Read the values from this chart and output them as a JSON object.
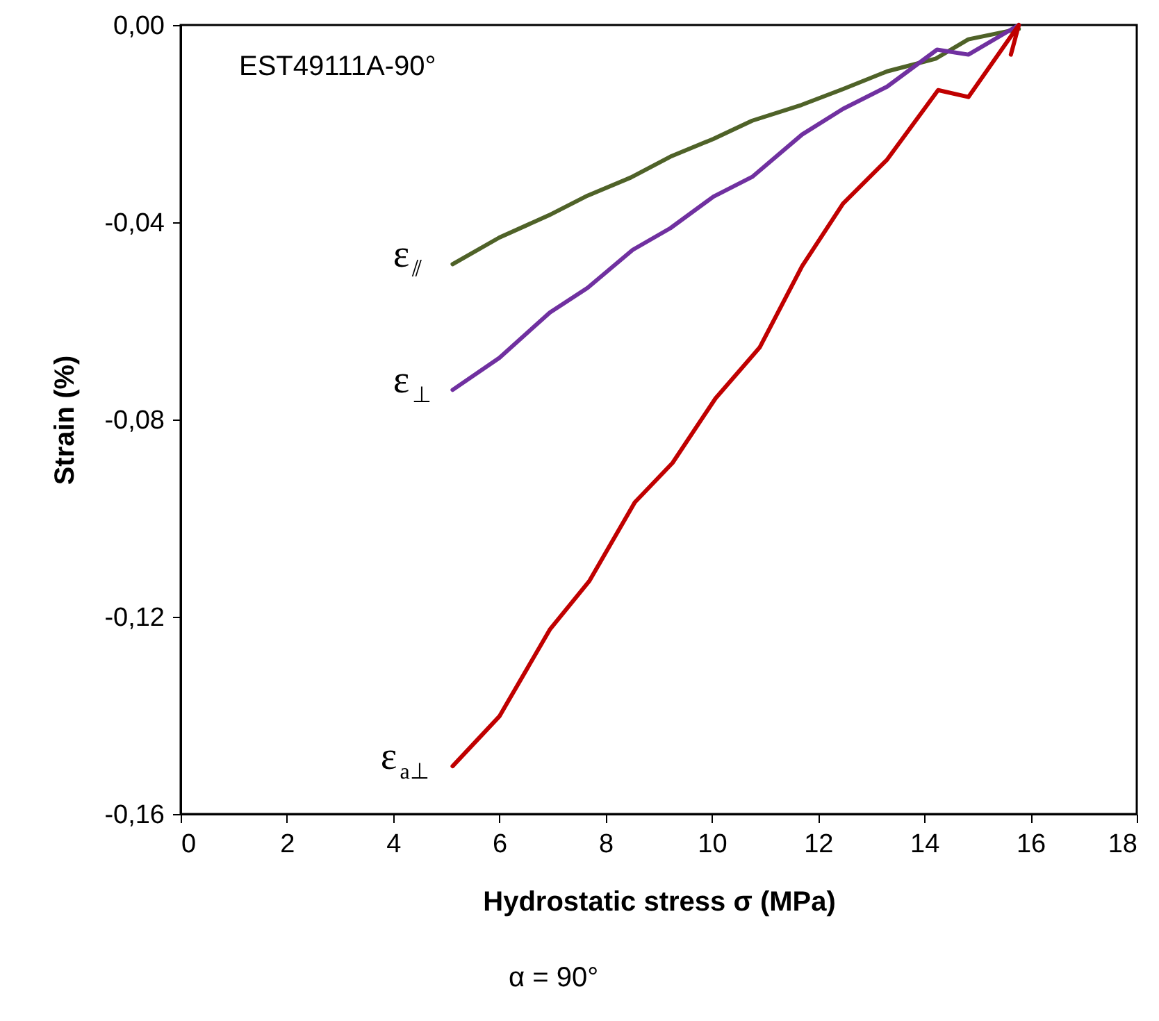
{
  "chart_data": {
    "type": "line",
    "xlabel": "Hydrostatic stress σ (MPa)",
    "ylabel": "Strain (%)",
    "annotations": [
      "EST49111A-90°",
      "α = 90°"
    ],
    "xlim": [
      0,
      18
    ],
    "xticks": [
      0,
      2,
      4,
      6,
      8,
      10,
      12,
      14,
      16,
      18
    ],
    "ylim": [
      -0.16,
      0
    ],
    "yticks": [
      {
        "value": -0.16,
        "label": "-0,16"
      },
      {
        "value": -0.12,
        "label": "-0,12"
      },
      {
        "value": -0.08,
        "label": "-0,08"
      },
      {
        "value": -0.04,
        "label": "-0,04"
      },
      {
        "value": 0,
        "label": "0,00"
      }
    ],
    "grid": false,
    "marker": "none",
    "line_style": "solid",
    "series": [
      {
        "name": "ε$_{⫽}$",
        "color": "#4f6228",
        "x": [
          5.12,
          6.0,
          6.93,
          7.66,
          8.48,
          9.22,
          10.03,
          10.76,
          11.69,
          12.47,
          13.3,
          14.22,
          14.83,
          15.78
        ],
        "values": [
          -0.0485,
          -0.0431,
          -0.0386,
          -0.0346,
          -0.0309,
          -0.0267,
          -0.0231,
          -0.0194,
          -0.0162,
          -0.013,
          -0.0094,
          -0.0068,
          -0.0029,
          -0.0008
        ]
      },
      {
        "name": "ε$_{⊥}$",
        "color": "#7030a0",
        "x": [
          5.12,
          6.0,
          6.95,
          7.66,
          8.51,
          9.22,
          10.03,
          10.76,
          11.7,
          12.47,
          13.3,
          14.24,
          14.83,
          15.78
        ],
        "values": [
          -0.074,
          -0.0675,
          -0.0583,
          -0.0533,
          -0.0456,
          -0.0412,
          -0.0348,
          -0.0308,
          -0.0222,
          -0.017,
          -0.0125,
          -0.005,
          -0.006,
          0.0
        ]
      },
      {
        "name": "ε$_{a⊥}$",
        "color": "#c00000",
        "x": [
          5.12,
          6.0,
          6.95,
          7.69,
          8.55,
          9.26,
          10.07,
          10.9,
          11.7,
          12.47,
          13.3,
          14.26,
          14.83,
          15.78,
          15.63
        ],
        "values": [
          -0.1503,
          -0.1402,
          -0.1226,
          -0.1128,
          -0.0968,
          -0.0888,
          -0.0757,
          -0.0654,
          -0.0489,
          -0.0362,
          -0.0273,
          -0.0132,
          -0.0146,
          0.0,
          -0.006
        ]
      }
    ]
  }
}
